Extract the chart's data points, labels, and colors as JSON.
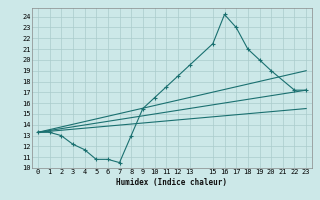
{
  "xlabel": "Humidex (Indice chaleur)",
  "bg_color": "#cce8e8",
  "grid_color": "#aacccc",
  "line_color": "#1a7070",
  "xlim": [
    -0.5,
    23.5
  ],
  "ylim": [
    10,
    24.8
  ],
  "yticks": [
    10,
    11,
    12,
    13,
    14,
    15,
    16,
    17,
    18,
    19,
    20,
    21,
    22,
    23,
    24
  ],
  "xticks": [
    0,
    1,
    2,
    3,
    4,
    5,
    6,
    7,
    8,
    9,
    10,
    11,
    12,
    13,
    15,
    16,
    17,
    18,
    19,
    20,
    21,
    22,
    23
  ],
  "xtick_labels": [
    "0",
    "1",
    "2",
    "3",
    "4",
    "5",
    "6",
    "7",
    "8",
    "9",
    "10",
    "11",
    "12",
    "13",
    "15",
    "16",
    "17",
    "18",
    "19",
    "20",
    "21",
    "22",
    "23"
  ],
  "line1_x": [
    0,
    1,
    2,
    3,
    4,
    5,
    6,
    7,
    8,
    9,
    10,
    11,
    12,
    13,
    15,
    16,
    17,
    18,
    19,
    20,
    22,
    23
  ],
  "line1_y": [
    13.3,
    13.3,
    13.0,
    12.2,
    11.7,
    10.8,
    10.8,
    10.5,
    13.0,
    15.5,
    16.5,
    17.5,
    18.5,
    19.5,
    21.5,
    24.2,
    23.0,
    21.0,
    20.0,
    19.0,
    17.2,
    17.2
  ],
  "line2_x": [
    0,
    23
  ],
  "line2_y": [
    13.3,
    15.5
  ],
  "line3_x": [
    0,
    23
  ],
  "line3_y": [
    13.3,
    17.2
  ],
  "line4_x": [
    0,
    23
  ],
  "line4_y": [
    13.3,
    19.0
  ]
}
